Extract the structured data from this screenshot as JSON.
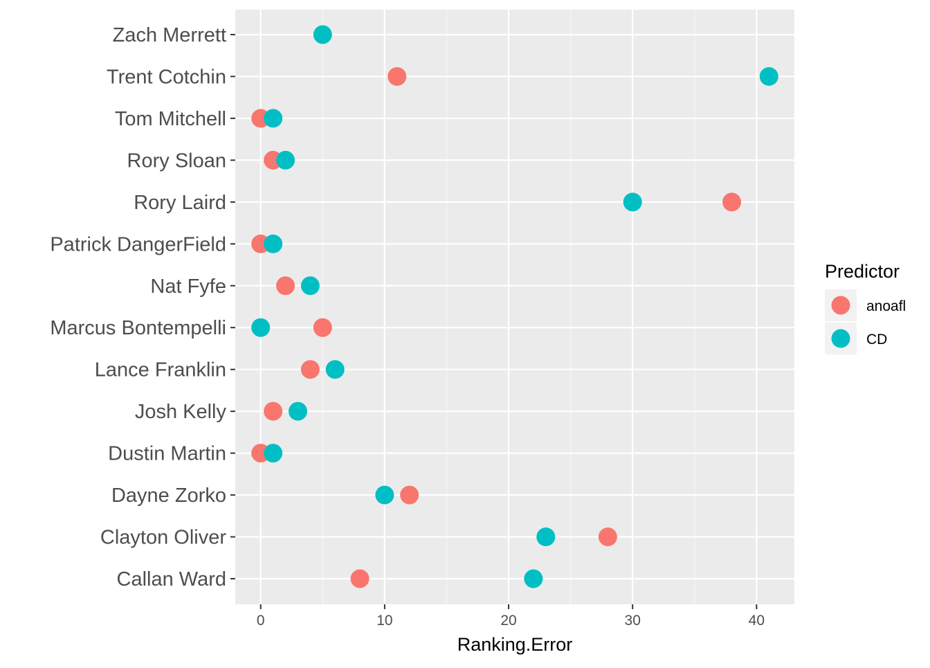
{
  "chart_data": {
    "type": "scatter",
    "title": "",
    "xlabel": "Ranking.Error",
    "ylabel": "",
    "xlim": [
      -2.05,
      43.05
    ],
    "x_ticks": [
      0,
      10,
      20,
      30,
      40
    ],
    "grid": true,
    "legend_position": "right",
    "legend_title": "Predictor",
    "categories": [
      "Callan Ward",
      "Clayton Oliver",
      "Dayne Zorko",
      "Dustin Martin",
      "Josh Kelly",
      "Lance Franklin",
      "Marcus Bontempelli",
      "Nat Fyfe",
      "Patrick DangerField",
      "Rory Laird",
      "Rory Sloan",
      "Tom Mitchell",
      "Trent Cotchin",
      "Zach Merrett"
    ],
    "series": [
      {
        "name": "anoafl",
        "color": "#F8766D",
        "values": [
          8,
          28,
          12,
          0,
          1,
          4,
          5,
          2,
          0,
          38,
          1,
          0,
          11,
          null
        ]
      },
      {
        "name": "CD",
        "color": "#00BFC4",
        "values": [
          22,
          23,
          10,
          1,
          3,
          6,
          0,
          4,
          1,
          30,
          2,
          1,
          41,
          5
        ]
      }
    ]
  }
}
